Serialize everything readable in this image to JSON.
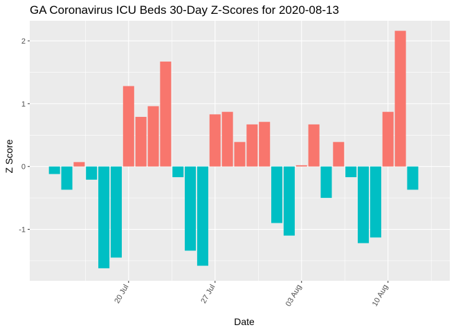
{
  "chart_data": {
    "type": "bar",
    "title": "GA Coronavirus ICU Beds 30-Day Z-Scores for 2020-08-13",
    "xlabel": "Date",
    "ylabel": "Z Score",
    "ylim": [
      -1.82,
      2.32
    ],
    "yticks": [
      -1,
      0,
      1,
      2
    ],
    "xticks": [
      {
        "date": "2020-07-20",
        "label": "20 Jul"
      },
      {
        "date": "2020-07-27",
        "label": "27 Jul"
      },
      {
        "date": "2020-08-03",
        "label": "03 Aug"
      },
      {
        "date": "2020-08-10",
        "label": "10 Aug"
      }
    ],
    "xlim": [
      "2020-07-12",
      "2020-08-15"
    ],
    "grid": true,
    "legend": "none",
    "colors": {
      "positive": "#F8766D",
      "negative": "#00BFC4",
      "panel": "#EBEBEB",
      "grid": "#FFFFFF"
    },
    "points": [
      {
        "date": "2020-07-14",
        "value": -0.12
      },
      {
        "date": "2020-07-15",
        "value": -0.37
      },
      {
        "date": "2020-07-16",
        "value": 0.07
      },
      {
        "date": "2020-07-17",
        "value": -0.21
      },
      {
        "date": "2020-07-18",
        "value": -1.62
      },
      {
        "date": "2020-07-19",
        "value": -1.45
      },
      {
        "date": "2020-07-20",
        "value": 1.28
      },
      {
        "date": "2020-07-21",
        "value": 0.79
      },
      {
        "date": "2020-07-22",
        "value": 0.96
      },
      {
        "date": "2020-07-23",
        "value": 1.67
      },
      {
        "date": "2020-07-24",
        "value": -0.17
      },
      {
        "date": "2020-07-25",
        "value": -1.34
      },
      {
        "date": "2020-07-26",
        "value": -1.58
      },
      {
        "date": "2020-07-27",
        "value": 0.83
      },
      {
        "date": "2020-07-28",
        "value": 0.87
      },
      {
        "date": "2020-07-29",
        "value": 0.39
      },
      {
        "date": "2020-07-30",
        "value": 0.67
      },
      {
        "date": "2020-07-31",
        "value": 0.71
      },
      {
        "date": "2020-08-01",
        "value": -0.9
      },
      {
        "date": "2020-08-02",
        "value": -1.1
      },
      {
        "date": "2020-08-03",
        "value": 0.02
      },
      {
        "date": "2020-08-04",
        "value": 0.67
      },
      {
        "date": "2020-08-05",
        "value": -0.5
      },
      {
        "date": "2020-08-06",
        "value": 0.39
      },
      {
        "date": "2020-08-07",
        "value": -0.17
      },
      {
        "date": "2020-08-08",
        "value": -1.22
      },
      {
        "date": "2020-08-09",
        "value": -1.13
      },
      {
        "date": "2020-08-10",
        "value": 0.87
      },
      {
        "date": "2020-08-11",
        "value": 2.16
      },
      {
        "date": "2020-08-12",
        "value": -0.37
      }
    ]
  }
}
